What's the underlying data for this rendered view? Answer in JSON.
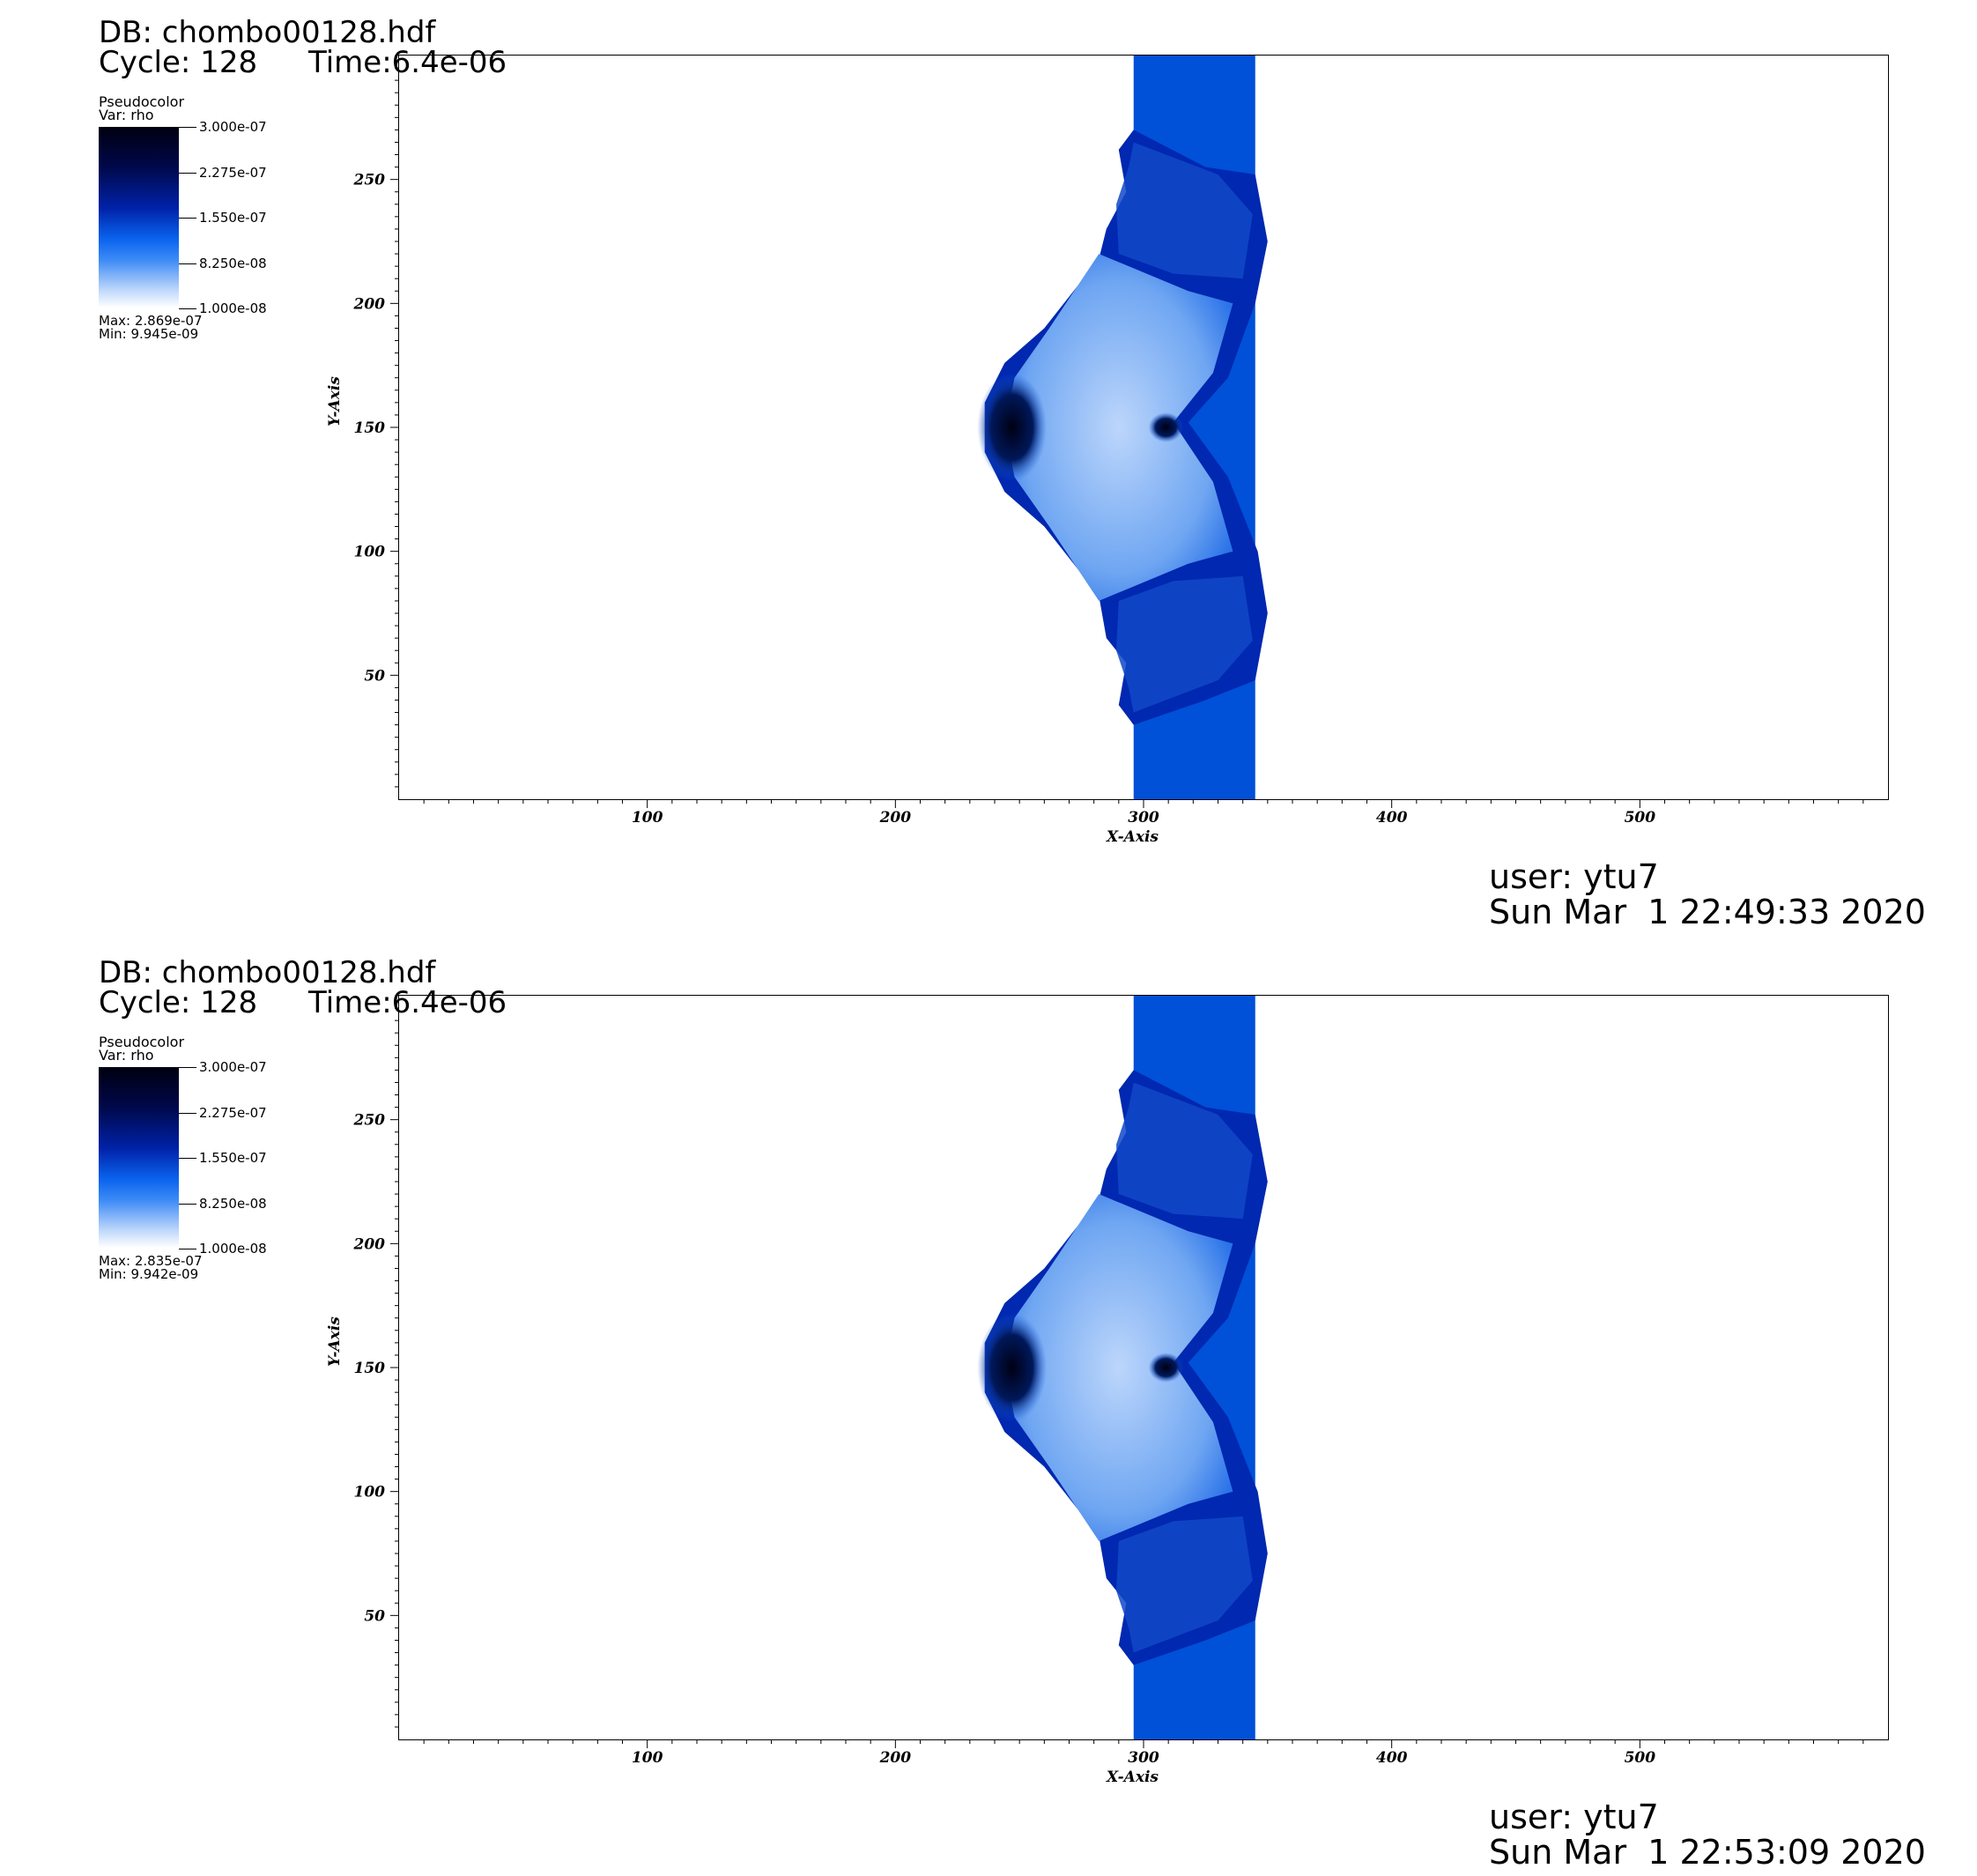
{
  "panels": [
    {
      "db": "DB: chombo00128.hdf",
      "cycle": "Cycle: 128",
      "time": "Time:6.4e-06",
      "legend_title": "Pseudocolor",
      "legend_var": "Var: rho",
      "legend_ticks": [
        "3.000e-07",
        "2.275e-07",
        "1.550e-07",
        "8.250e-08",
        "1.000e-08"
      ],
      "max": "Max:  2.869e-07",
      "min": "Min:  9.945e-09",
      "user": "user: ytu7",
      "date": "Sun Mar  1 22:49:33 2020"
    },
    {
      "db": "DB: chombo00128.hdf",
      "cycle": "Cycle: 128",
      "time": "Time:6.4e-06",
      "legend_title": "Pseudocolor",
      "legend_var": "Var: rho",
      "legend_ticks": [
        "3.000e-07",
        "2.275e-07",
        "1.550e-07",
        "8.250e-08",
        "1.000e-08"
      ],
      "max": "Max:  2.835e-07",
      "min": "Min:  9.942e-09",
      "user": "user: ytu7",
      "date": "Sun Mar  1 22:53:09 2020"
    }
  ],
  "chart_data": [
    {
      "type": "heatmap",
      "title": "",
      "xlabel": "X-Axis",
      "ylabel": "Y-Axis",
      "xlim": [
        0,
        600
      ],
      "ylim": [
        0,
        300
      ],
      "xticks": [
        100,
        200,
        300,
        400,
        500
      ],
      "yticks": [
        50,
        100,
        150,
        200,
        250
      ],
      "variable": "rho",
      "colorbar": {
        "min": 1e-08,
        "max": 3e-07
      },
      "data_max": 2.869e-07,
      "data_min": 9.945e-09
    },
    {
      "type": "heatmap",
      "title": "",
      "xlabel": "X-Axis",
      "ylabel": "Y-Axis",
      "xlim": [
        0,
        600
      ],
      "ylim": [
        0,
        300
      ],
      "xticks": [
        100,
        200,
        300,
        400,
        500
      ],
      "yticks": [
        50,
        100,
        150,
        200,
        250
      ],
      "variable": "rho",
      "colorbar": {
        "min": 1e-08,
        "max": 3e-07
      },
      "data_max": 2.835e-07,
      "data_min": 9.942e-09
    }
  ],
  "colors": {
    "slab": "#0050d8",
    "shell_dark": "#0028b0",
    "core_dark": "#000a40",
    "interior_light": "#8ab8f4",
    "background": "#ffffff"
  }
}
